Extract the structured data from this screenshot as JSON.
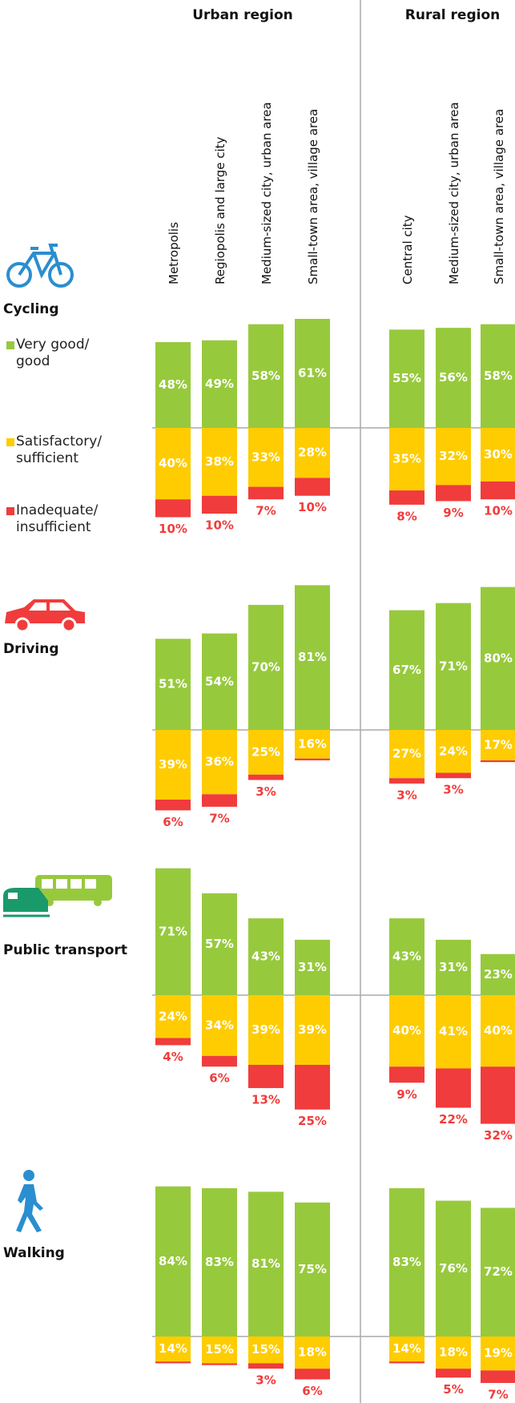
{
  "chart_data": {
    "type": "diverging-bar",
    "groups": [
      {
        "name": "Urban region",
        "categories": [
          "Metropolis",
          "Regiopolis and large city",
          "Medium-sized city, urban area",
          "Small-town area, village area"
        ]
      },
      {
        "name": "Rural region",
        "categories": [
          "Central city",
          "Medium-sized city, urban area",
          "Small-town area, village area"
        ]
      }
    ],
    "legend": [
      {
        "name": "Very good/ good",
        "color": "#97c93d"
      },
      {
        "name": "Satisfactory/ sufficient",
        "color": "#fecc00"
      },
      {
        "name": "Inadequate/ insufficient",
        "color": "#f03c3c"
      }
    ],
    "panels": [
      {
        "name": "Cycling",
        "series": [
          {
            "values": [
              48,
              49,
              58,
              61,
              55,
              56,
              58
            ],
            "value_labels": [
              "48%",
              "49%",
              "58%",
              "61%",
              "55%",
              "56%",
              "58%"
            ]
          },
          {
            "values": [
              40,
              38,
              33,
              28,
              35,
              32,
              30
            ],
            "value_labels": [
              "40%",
              "38%",
              "33%",
              "28%",
              "35%",
              "32%",
              "30%"
            ]
          },
          {
            "values": [
              10,
              10,
              7,
              10,
              8,
              9,
              10
            ],
            "value_labels": [
              "10%",
              "10%",
              "7%",
              "10%",
              "8%",
              "9%",
              "10%"
            ]
          }
        ]
      },
      {
        "name": "Driving",
        "series": [
          {
            "values": [
              51,
              54,
              70,
              81,
              67,
              71,
              80
            ],
            "value_labels": [
              "51%",
              "54%",
              "70%",
              "81%",
              "67%",
              "71%",
              "80%"
            ]
          },
          {
            "values": [
              39,
              36,
              25,
              16,
              27,
              24,
              17
            ],
            "value_labels": [
              "39%",
              "36%",
              "25%",
              "16%",
              "27%",
              "24%",
              "17%"
            ]
          },
          {
            "values": [
              6,
              7,
              3,
              1,
              3,
              3,
              1
            ],
            "value_labels": [
              "6%",
              "7%",
              "3%",
              null,
              "3%",
              "3%",
              null
            ]
          }
        ]
      },
      {
        "name": "Public transport",
        "series": [
          {
            "values": [
              71,
              57,
              43,
              31,
              43,
              31,
              23
            ],
            "value_labels": [
              "71%",
              "57%",
              "43%",
              "31%",
              "43%",
              "31%",
              "23%"
            ]
          },
          {
            "values": [
              24,
              34,
              39,
              39,
              40,
              41,
              40
            ],
            "value_labels": [
              "24%",
              "34%",
              "39%",
              "39%",
              "40%",
              "41%",
              "40%"
            ]
          },
          {
            "values": [
              4,
              6,
              13,
              25,
              9,
              22,
              32
            ],
            "value_labels": [
              "4%",
              "6%",
              "13%",
              "25%",
              "9%",
              "22%",
              "32%"
            ]
          }
        ]
      },
      {
        "name": "Walking",
        "series": [
          {
            "values": [
              84,
              83,
              81,
              75,
              83,
              76,
              72
            ],
            "value_labels": [
              "84%",
              "83%",
              "81%",
              "75%",
              "83%",
              "76%",
              "72%"
            ]
          },
          {
            "values": [
              14,
              15,
              15,
              18,
              14,
              18,
              19
            ],
            "value_labels": [
              "14%",
              "15%",
              "15%",
              "18%",
              "14%",
              "18%",
              "19%"
            ]
          },
          {
            "values": [
              1,
              1,
              3,
              6,
              1,
              5,
              7
            ],
            "value_labels": [
              null,
              null,
              "3%",
              "6%",
              null,
              "5%",
              "7%"
            ]
          }
        ]
      }
    ]
  }
}
